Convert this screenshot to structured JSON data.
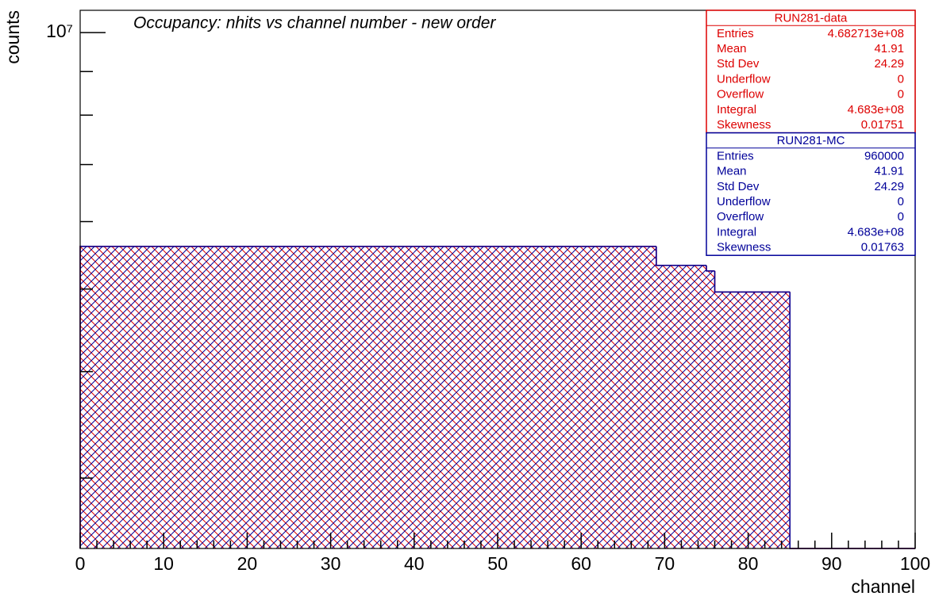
{
  "chart_data": {
    "type": "histogram",
    "title": "Occupancy: nhits vs channel number - new order",
    "x_label": "channel",
    "y_label": "counts",
    "bins": [
      0,
      1,
      2,
      3,
      4,
      5,
      6,
      7,
      8,
      9,
      10,
      11,
      12,
      13,
      14,
      15,
      16,
      17,
      18,
      19,
      20,
      21,
      22,
      23,
      24,
      25,
      26,
      27,
      28,
      29,
      30,
      31,
      32,
      33,
      34,
      35,
      36,
      37,
      38,
      39,
      40,
      41,
      42,
      43,
      44,
      45,
      46,
      47,
      48,
      49,
      50,
      51,
      52,
      53,
      54,
      55,
      56,
      57,
      58,
      59,
      60,
      61,
      62,
      63,
      64,
      65,
      66,
      67,
      68,
      69,
      70,
      71,
      72,
      73,
      74,
      75,
      76,
      77,
      78,
      79,
      80,
      81,
      82,
      83,
      84,
      85,
      86,
      87,
      88,
      89,
      90,
      91,
      92,
      93,
      94,
      95,
      96,
      97,
      98,
      99,
      100
    ],
    "series": [
      {
        "name": "RUN281-data",
        "color": "#dd0000",
        "values": [
          5610000,
          5610000,
          5610000,
          5610000,
          5610000,
          5610000,
          5610000,
          5610000,
          5610000,
          5610000,
          5610000,
          5610000,
          5610000,
          5610000,
          5610000,
          5610000,
          5610000,
          5610000,
          5610000,
          5610000,
          5610000,
          5610000,
          5610000,
          5610000,
          5610000,
          5610000,
          5610000,
          5610000,
          5610000,
          5610000,
          5610000,
          5610000,
          5610000,
          5610000,
          5610000,
          5610000,
          5610000,
          5610000,
          5610000,
          5610000,
          5610000,
          5610000,
          5610000,
          5610000,
          5610000,
          5610000,
          5610000,
          5610000,
          5610000,
          5610000,
          5610000,
          5610000,
          5610000,
          5610000,
          5610000,
          5610000,
          5610000,
          5610000,
          5610000,
          5610000,
          5610000,
          5610000,
          5610000,
          5610000,
          5610000,
          5610000,
          5610000,
          5610000,
          5610000,
          5330000,
          5330000,
          5330000,
          5330000,
          5330000,
          5330000,
          5250000,
          4960000,
          4960000,
          4960000,
          4960000,
          4960000,
          4960000,
          4960000,
          4960000,
          4960000,
          0,
          0,
          0,
          0,
          0,
          0,
          0,
          0,
          0,
          0,
          0,
          0,
          0,
          0,
          0
        ]
      },
      {
        "name": "RUN281-MC",
        "color": "#000099",
        "values": [
          5610000,
          5610000,
          5610000,
          5610000,
          5610000,
          5610000,
          5610000,
          5610000,
          5610000,
          5610000,
          5610000,
          5610000,
          5610000,
          5610000,
          5610000,
          5610000,
          5610000,
          5610000,
          5610000,
          5610000,
          5610000,
          5610000,
          5610000,
          5610000,
          5610000,
          5610000,
          5610000,
          5610000,
          5610000,
          5610000,
          5610000,
          5610000,
          5610000,
          5610000,
          5610000,
          5610000,
          5610000,
          5610000,
          5610000,
          5610000,
          5610000,
          5610000,
          5610000,
          5610000,
          5610000,
          5610000,
          5610000,
          5610000,
          5610000,
          5610000,
          5610000,
          5610000,
          5610000,
          5610000,
          5610000,
          5610000,
          5610000,
          5610000,
          5610000,
          5610000,
          5610000,
          5610000,
          5610000,
          5610000,
          5610000,
          5610000,
          5610000,
          5610000,
          5610000,
          5330000,
          5330000,
          5330000,
          5330000,
          5330000,
          5330000,
          5250000,
          4960000,
          4960000,
          4960000,
          4960000,
          4960000,
          4960000,
          4960000,
          4960000,
          4960000,
          0,
          0,
          0,
          0,
          0,
          0,
          0,
          0,
          0,
          0,
          0,
          0,
          0,
          0,
          0
        ]
      }
    ],
    "xlim": [
      0,
      100
    ],
    "xticks": [
      0,
      10,
      20,
      30,
      40,
      50,
      60,
      70,
      80,
      90,
      100
    ],
    "minor_xticks": [
      2,
      4,
      6,
      8,
      12,
      14,
      16,
      18,
      22,
      24,
      26,
      28,
      32,
      34,
      36,
      38,
      42,
      44,
      46,
      48,
      52,
      54,
      56,
      58,
      62,
      64,
      66,
      68,
      72,
      74,
      76,
      78,
      82,
      84,
      86,
      88,
      92,
      94,
      96,
      98
    ],
    "ylim": [
      2480000,
      10620000
    ],
    "log_y": true,
    "yticks": [
      {
        "value": 10000000,
        "label": "10⁷"
      }
    ],
    "minor_yticks": [
      3000000,
      4000000,
      5000000,
      6000000,
      7000000,
      8000000,
      9000000
    ],
    "stats": [
      {
        "title": "RUN281-data",
        "color": "#dd0000",
        "rows": [
          [
            "Entries",
            "4.682713e+08"
          ],
          [
            "Mean",
            "41.91"
          ],
          [
            "Std Dev",
            "24.29"
          ],
          [
            "Underflow",
            "0"
          ],
          [
            "Overflow",
            "0"
          ],
          [
            "Integral",
            "4.683e+08"
          ],
          [
            "Skewness",
            "0.01751"
          ]
        ]
      },
      {
        "title": "RUN281-MC",
        "color": "#000099",
        "rows": [
          [
            "Entries",
            "960000"
          ],
          [
            "Mean",
            "41.91"
          ],
          [
            "Std Dev",
            "24.29"
          ],
          [
            "Underflow",
            "0"
          ],
          [
            "Overflow",
            "0"
          ],
          [
            "Integral",
            "4.683e+08"
          ],
          [
            "Skewness",
            "0.01763"
          ]
        ]
      }
    ]
  }
}
